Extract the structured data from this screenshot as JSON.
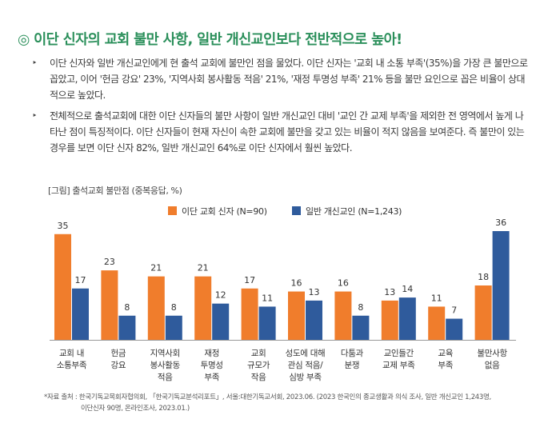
{
  "headline": "◎ 이단 신자의 교회 불만 사항, 일반 개신교인보다 전반적으로 높아!",
  "bullets": [
    "이단 신자와 일반 개신교인에게 현 출석 교회에 불만인 점을 물었다. 이단 신자는 '교회 내 소통 부족'(35%)을 가장 큰 불만으로 꼽았고, 이어 '헌금 강요' 23%, '지역사회 봉사활동 적음' 21%, '재정 투명성 부족' 21% 등을 불만 요인으로 꼽은 비율이 상대적으로 높았다.",
    "전체적으로 출석교회에 대한 이단 신자들의 불만 사항이 일반 개신교인 대비 '교인 간 교제 부족'을 제외한 전 영역에서 높게 나타난 점이 특징적이다. 이단 신자들이 현재 자신이 속한 교회에 불만을 갖고 있는 비율이 적지 않음을 보여준다. 즉 불만이 있는 경우를 보면 이단 신자 82%, 일반 개신교인 64%로 이단 신자에서 훨씬 높았다."
  ],
  "bullet_mark": "‣",
  "caption": "[그림] 출석교회 불만점 (중복응답, %)",
  "footnote": {
    "line1": "*자료 출처 : 한국기독교목회자협의회, 「한국기독교분석리포트」, 서울:대한기독교서회, 2023.06. (2023 한국인의 종교생활과 의식 조사, 일반 개신교인 1,243명,",
    "line2": "이단신자 90명, 온라인조사, 2023.01.)"
  },
  "chart_data": {
    "type": "bar",
    "categories": [
      [
        "교회 내",
        "소통부족"
      ],
      [
        "헌금",
        "강요"
      ],
      [
        "지역사회",
        "봉사활동",
        "적음"
      ],
      [
        "재정",
        "투명성",
        "부족"
      ],
      [
        "교회",
        "규모가",
        "작음"
      ],
      [
        "성도에 대해",
        "관심 적음/",
        "심방 부족"
      ],
      [
        "다툼과",
        "분쟁"
      ],
      [
        "교인들간",
        "교제 부족"
      ],
      [
        "교육",
        "부족"
      ],
      [
        "불만사항",
        "없음"
      ]
    ],
    "series": [
      {
        "name": "이단 교회 신자 (N=90)",
        "color": "#f07d2c",
        "values": [
          35,
          23,
          21,
          21,
          17,
          16,
          16,
          13,
          11,
          18
        ]
      },
      {
        "name": "일반 개신교인 (N=1,243)",
        "color": "#2f5b9c",
        "values": [
          17,
          8,
          8,
          12,
          11,
          13,
          8,
          14,
          7,
          36
        ]
      }
    ],
    "legend_position": "top-center",
    "ylim": [
      0,
      36
    ],
    "grid": false
  }
}
